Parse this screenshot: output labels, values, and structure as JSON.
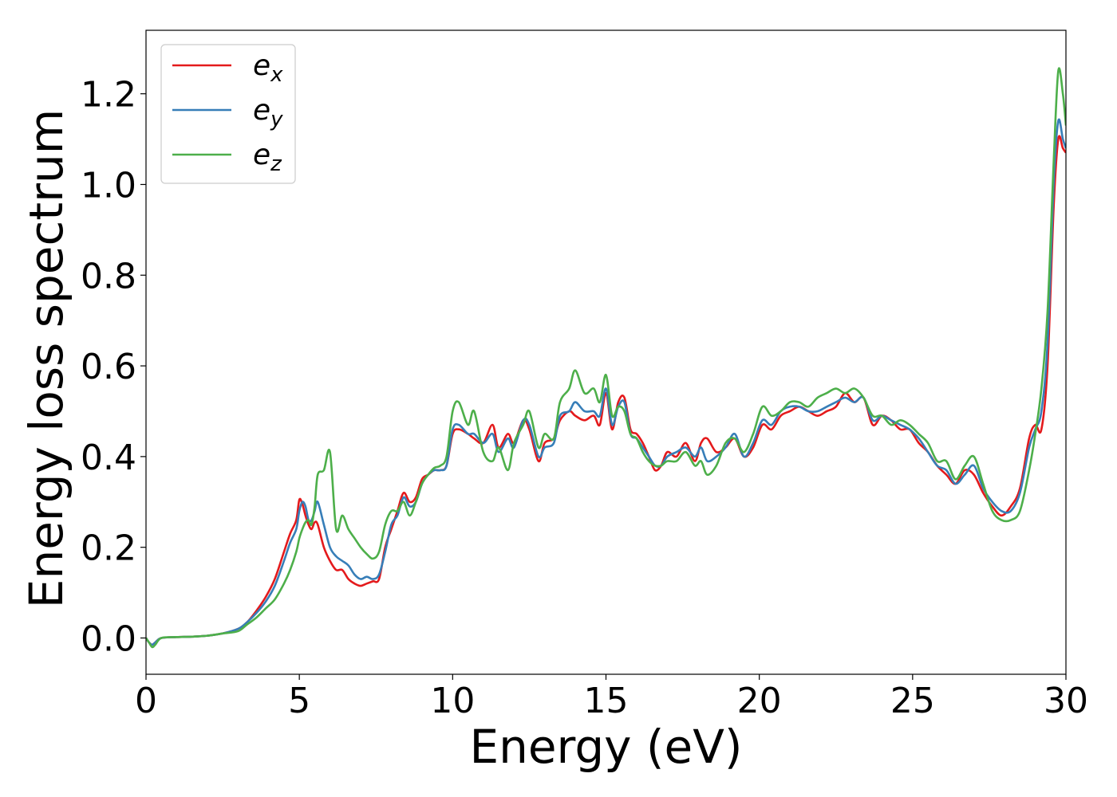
{
  "chart_data": {
    "type": "line",
    "title": "",
    "xlabel": "Energy (eV)",
    "ylabel": "Energy loss spectrum",
    "xlim": [
      0,
      30
    ],
    "ylim": [
      -0.08,
      1.34
    ],
    "xticks": [
      0,
      5,
      10,
      15,
      20,
      25,
      30
    ],
    "yticks": [
      0.0,
      0.2,
      0.4,
      0.6,
      0.8,
      1.0,
      1.2
    ],
    "xtick_labels": [
      "0",
      "5",
      "10",
      "15",
      "20",
      "25",
      "30"
    ],
    "ytick_labels": [
      "0.0",
      "0.2",
      "0.4",
      "0.6",
      "0.8",
      "1.0",
      "1.2"
    ],
    "grid": false,
    "legend_position": "top-left",
    "series": [
      {
        "name": "e_x",
        "legend_base": "e",
        "legend_sub": "x",
        "color": "#e41a1c",
        "x": [
          0,
          0.1,
          0.2,
          0.3,
          0.5,
          1,
          1.5,
          2,
          2.5,
          3,
          3.3,
          3.6,
          3.9,
          4.2,
          4.5,
          4.7,
          4.9,
          5.0,
          5.1,
          5.2,
          5.3,
          5.4,
          5.5,
          5.6,
          5.8,
          6.0,
          6.2,
          6.4,
          6.6,
          6.8,
          7.0,
          7.2,
          7.4,
          7.6,
          7.8,
          8.0,
          8.2,
          8.4,
          8.6,
          8.8,
          9.0,
          9.2,
          9.4,
          9.6,
          9.8,
          10.0,
          10.2,
          10.5,
          10.7,
          11.0,
          11.3,
          11.5,
          11.8,
          12.0,
          12.3,
          12.5,
          12.8,
          13.0,
          13.3,
          13.5,
          13.8,
          14.0,
          14.3,
          14.6,
          14.8,
          15.0,
          15.2,
          15.4,
          15.6,
          15.8,
          16.0,
          16.2,
          16.4,
          16.6,
          16.8,
          17.0,
          17.3,
          17.6,
          17.9,
          18.1,
          18.3,
          18.6,
          18.9,
          19.2,
          19.5,
          19.8,
          20.1,
          20.4,
          20.7,
          21.0,
          21.3,
          21.6,
          21.9,
          22.2,
          22.5,
          22.8,
          23.1,
          23.4,
          23.7,
          24.0,
          24.3,
          24.6,
          24.9,
          25.2,
          25.5,
          25.8,
          26.1,
          26.4,
          26.7,
          27.0,
          27.3,
          27.6,
          27.9,
          28.2,
          28.5,
          28.8,
          29.0,
          29.2,
          29.4,
          29.6,
          29.75,
          29.9,
          30.0
        ],
        "values": [
          0.0,
          -0.01,
          -0.015,
          -0.01,
          0.0,
          0.002,
          0.003,
          0.005,
          0.01,
          0.02,
          0.035,
          0.06,
          0.09,
          0.13,
          0.19,
          0.23,
          0.26,
          0.305,
          0.295,
          0.27,
          0.25,
          0.24,
          0.255,
          0.25,
          0.2,
          0.17,
          0.15,
          0.15,
          0.13,
          0.12,
          0.115,
          0.12,
          0.125,
          0.13,
          0.2,
          0.24,
          0.28,
          0.32,
          0.3,
          0.31,
          0.35,
          0.36,
          0.37,
          0.37,
          0.38,
          0.45,
          0.46,
          0.45,
          0.44,
          0.43,
          0.47,
          0.42,
          0.45,
          0.43,
          0.48,
          0.46,
          0.39,
          0.43,
          0.44,
          0.48,
          0.5,
          0.49,
          0.48,
          0.49,
          0.47,
          0.54,
          0.46,
          0.52,
          0.53,
          0.46,
          0.45,
          0.43,
          0.4,
          0.37,
          0.38,
          0.41,
          0.4,
          0.43,
          0.39,
          0.43,
          0.44,
          0.41,
          0.42,
          0.44,
          0.4,
          0.42,
          0.47,
          0.46,
          0.49,
          0.5,
          0.51,
          0.5,
          0.49,
          0.5,
          0.51,
          0.54,
          0.52,
          0.53,
          0.47,
          0.49,
          0.48,
          0.46,
          0.46,
          0.43,
          0.41,
          0.38,
          0.36,
          0.34,
          0.37,
          0.36,
          0.32,
          0.29,
          0.27,
          0.29,
          0.33,
          0.44,
          0.47,
          0.46,
          0.6,
          0.95,
          1.1,
          1.08,
          1.07
        ]
      },
      {
        "name": "e_y",
        "legend_base": "e",
        "legend_sub": "y",
        "color": "#377eb8",
        "x": [
          0,
          0.1,
          0.2,
          0.3,
          0.5,
          1,
          1.5,
          2,
          2.5,
          3,
          3.3,
          3.6,
          3.9,
          4.2,
          4.5,
          4.7,
          4.9,
          5.0,
          5.1,
          5.2,
          5.3,
          5.4,
          5.5,
          5.6,
          5.8,
          6.0,
          6.2,
          6.4,
          6.6,
          6.8,
          7.0,
          7.2,
          7.4,
          7.6,
          7.8,
          8.0,
          8.2,
          8.4,
          8.6,
          8.8,
          9.0,
          9.2,
          9.4,
          9.6,
          9.8,
          10.0,
          10.2,
          10.5,
          10.7,
          11.0,
          11.3,
          11.5,
          11.8,
          12.0,
          12.3,
          12.5,
          12.8,
          13.0,
          13.3,
          13.5,
          13.8,
          14.0,
          14.3,
          14.6,
          14.8,
          15.0,
          15.2,
          15.4,
          15.6,
          15.8,
          16.0,
          16.2,
          16.4,
          16.6,
          16.8,
          17.0,
          17.3,
          17.6,
          17.9,
          18.1,
          18.3,
          18.6,
          18.9,
          19.2,
          19.5,
          19.8,
          20.1,
          20.4,
          20.7,
          21.0,
          21.3,
          21.6,
          21.9,
          22.2,
          22.5,
          22.8,
          23.1,
          23.4,
          23.7,
          24.0,
          24.3,
          24.6,
          24.9,
          25.2,
          25.5,
          25.8,
          26.1,
          26.4,
          26.7,
          27.0,
          27.3,
          27.6,
          27.9,
          28.2,
          28.5,
          28.8,
          29.0,
          29.2,
          29.4,
          29.6,
          29.75,
          29.9,
          30.0
        ],
        "values": [
          0.0,
          -0.01,
          -0.015,
          -0.01,
          0.0,
          0.002,
          0.003,
          0.005,
          0.01,
          0.02,
          0.035,
          0.055,
          0.08,
          0.115,
          0.17,
          0.21,
          0.24,
          0.28,
          0.3,
          0.29,
          0.26,
          0.26,
          0.28,
          0.3,
          0.25,
          0.2,
          0.18,
          0.17,
          0.16,
          0.14,
          0.13,
          0.135,
          0.13,
          0.14,
          0.19,
          0.25,
          0.27,
          0.31,
          0.29,
          0.3,
          0.34,
          0.36,
          0.37,
          0.37,
          0.38,
          0.46,
          0.47,
          0.45,
          0.45,
          0.43,
          0.45,
          0.41,
          0.44,
          0.42,
          0.48,
          0.47,
          0.4,
          0.42,
          0.43,
          0.49,
          0.5,
          0.52,
          0.5,
          0.5,
          0.49,
          0.55,
          0.47,
          0.51,
          0.52,
          0.45,
          0.44,
          0.42,
          0.4,
          0.38,
          0.38,
          0.4,
          0.41,
          0.42,
          0.4,
          0.42,
          0.39,
          0.4,
          0.42,
          0.45,
          0.4,
          0.43,
          0.48,
          0.47,
          0.5,
          0.51,
          0.51,
          0.5,
          0.5,
          0.51,
          0.52,
          0.53,
          0.52,
          0.53,
          0.48,
          0.49,
          0.48,
          0.47,
          0.46,
          0.44,
          0.41,
          0.38,
          0.37,
          0.34,
          0.36,
          0.38,
          0.33,
          0.3,
          0.28,
          0.28,
          0.32,
          0.42,
          0.46,
          0.5,
          0.65,
          1.0,
          1.14,
          1.1,
          1.08
        ]
      },
      {
        "name": "e_z",
        "legend_base": "e",
        "legend_sub": "z",
        "color": "#4daf4a",
        "x": [
          0,
          0.1,
          0.2,
          0.3,
          0.5,
          1,
          1.5,
          2,
          2.5,
          3,
          3.3,
          3.6,
          3.9,
          4.2,
          4.5,
          4.7,
          4.9,
          5.0,
          5.1,
          5.2,
          5.3,
          5.4,
          5.5,
          5.6,
          5.8,
          6.0,
          6.2,
          6.4,
          6.6,
          6.8,
          7.0,
          7.2,
          7.4,
          7.6,
          7.8,
          8.0,
          8.2,
          8.4,
          8.6,
          8.8,
          9.0,
          9.2,
          9.4,
          9.6,
          9.8,
          10.0,
          10.2,
          10.5,
          10.7,
          11.0,
          11.3,
          11.5,
          11.8,
          12.0,
          12.3,
          12.5,
          12.8,
          13.0,
          13.3,
          13.5,
          13.8,
          14.0,
          14.3,
          14.6,
          14.8,
          15.0,
          15.2,
          15.4,
          15.6,
          15.8,
          16.0,
          16.2,
          16.4,
          16.6,
          16.8,
          17.0,
          17.3,
          17.6,
          17.9,
          18.1,
          18.3,
          18.6,
          18.9,
          19.2,
          19.5,
          19.8,
          20.1,
          20.4,
          20.7,
          21.0,
          21.3,
          21.6,
          21.9,
          22.2,
          22.5,
          22.8,
          23.1,
          23.4,
          23.7,
          24.0,
          24.3,
          24.6,
          24.9,
          25.2,
          25.5,
          25.8,
          26.1,
          26.4,
          26.7,
          27.0,
          27.3,
          27.6,
          27.9,
          28.2,
          28.5,
          28.8,
          29.0,
          29.2,
          29.4,
          29.6,
          29.75,
          29.9,
          30.0
        ],
        "values": [
          0.0,
          -0.01,
          -0.02,
          -0.015,
          0.0,
          0.002,
          0.003,
          0.005,
          0.01,
          0.015,
          0.03,
          0.045,
          0.065,
          0.085,
          0.12,
          0.15,
          0.19,
          0.22,
          0.24,
          0.255,
          0.26,
          0.25,
          0.29,
          0.36,
          0.37,
          0.41,
          0.24,
          0.27,
          0.24,
          0.22,
          0.2,
          0.185,
          0.175,
          0.19,
          0.25,
          0.28,
          0.28,
          0.3,
          0.27,
          0.3,
          0.34,
          0.36,
          0.375,
          0.38,
          0.4,
          0.5,
          0.52,
          0.47,
          0.5,
          0.41,
          0.39,
          0.42,
          0.37,
          0.43,
          0.47,
          0.5,
          0.42,
          0.45,
          0.44,
          0.52,
          0.55,
          0.59,
          0.54,
          0.55,
          0.52,
          0.58,
          0.49,
          0.51,
          0.5,
          0.45,
          0.44,
          0.41,
          0.39,
          0.38,
          0.38,
          0.39,
          0.39,
          0.41,
          0.38,
          0.39,
          0.36,
          0.38,
          0.43,
          0.44,
          0.41,
          0.45,
          0.51,
          0.49,
          0.5,
          0.52,
          0.52,
          0.51,
          0.53,
          0.54,
          0.55,
          0.54,
          0.55,
          0.53,
          0.49,
          0.49,
          0.47,
          0.48,
          0.47,
          0.45,
          0.43,
          0.39,
          0.39,
          0.35,
          0.38,
          0.4,
          0.34,
          0.28,
          0.26,
          0.26,
          0.28,
          0.37,
          0.45,
          0.55,
          0.72,
          1.05,
          1.25,
          1.2,
          1.13
        ]
      }
    ]
  }
}
